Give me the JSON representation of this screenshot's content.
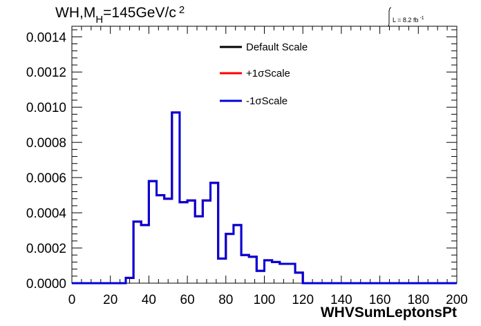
{
  "chart_data": {
    "type": "line",
    "title_prefix": "WH,M",
    "title_sub": "H",
    "title_suffix": "=145GeV/c",
    "title_sup": "2",
    "lumi_label": "L = 8.2 fb",
    "lumi_sup": "-1",
    "xlabel": "WHVSumLeptonsPt",
    "ylabel": "",
    "xlim": [
      0,
      200
    ],
    "ylim": [
      0,
      0.00146
    ],
    "x_ticks": [
      0,
      20,
      40,
      60,
      80,
      100,
      120,
      140,
      160,
      180,
      200
    ],
    "x_tick_labels": [
      "0",
      "20",
      "40",
      "60",
      "80",
      "100",
      "120",
      "140",
      "160",
      "180",
      "200"
    ],
    "y_ticks": [
      0,
      0.0002,
      0.0004,
      0.0006,
      0.0008,
      0.001,
      0.0012,
      0.0014
    ],
    "y_tick_labels": [
      "0.0000",
      "0.0002",
      "0.0004",
      "0.0006",
      "0.0008",
      "0.0010",
      "0.0012",
      "0.0014"
    ],
    "grid": false,
    "legend_position": "top-center",
    "bin_edges": [
      0,
      4,
      8,
      12,
      16,
      20,
      24,
      28,
      32,
      36,
      40,
      44,
      48,
      52,
      56,
      60,
      64,
      68,
      72,
      76,
      80,
      84,
      88,
      92,
      96,
      100,
      104,
      108,
      112,
      116,
      120,
      124,
      128,
      132,
      136,
      140,
      144,
      148,
      152,
      156,
      160,
      164,
      168,
      172,
      176,
      180,
      184,
      188,
      192,
      196,
      200
    ],
    "series": [
      {
        "name": "Default Scale",
        "color": "#000000",
        "values": [
          0,
          0,
          0,
          0,
          0,
          0,
          0,
          3e-05,
          0.00035,
          0.00033,
          0.00058,
          0.0005,
          0.00048,
          0.00097,
          0.00046,
          0.00047,
          0.00038,
          0.00047,
          0.00057,
          0.00014,
          0.00028,
          0.00033,
          0.00016,
          0.00015,
          7e-05,
          0.00013,
          0.00012,
          0.00011,
          0.00011,
          6e-05,
          0,
          0,
          0,
          0,
          0,
          0,
          0,
          0,
          0,
          0,
          0,
          0,
          0,
          0,
          0,
          0,
          0,
          0,
          0,
          0
        ]
      },
      {
        "name": "+1σScale",
        "color": "#ff0000",
        "values": [
          0,
          0,
          0,
          0,
          0,
          0,
          0,
          3e-05,
          0.00035,
          0.00033,
          0.00058,
          0.0005,
          0.00048,
          0.00097,
          0.00046,
          0.00047,
          0.00038,
          0.00047,
          0.00057,
          0.00014,
          0.00028,
          0.00033,
          0.00016,
          0.00015,
          7e-05,
          0.00013,
          0.00012,
          0.00011,
          0.00011,
          6e-05,
          0,
          0,
          0,
          0,
          0,
          0,
          0,
          0,
          0,
          0,
          0,
          0,
          0,
          0,
          0,
          0,
          0,
          0,
          0,
          0
        ]
      },
      {
        "name": "-1σScale",
        "color": "#0000dd",
        "values": [
          0,
          0,
          0,
          0,
          0,
          0,
          0,
          3e-05,
          0.00035,
          0.00033,
          0.00058,
          0.0005,
          0.00048,
          0.00097,
          0.00046,
          0.00047,
          0.00038,
          0.00047,
          0.00057,
          0.00014,
          0.00028,
          0.00033,
          0.00016,
          0.00015,
          7e-05,
          0.00013,
          0.00012,
          0.00011,
          0.00011,
          6e-05,
          0,
          0,
          0,
          0,
          0,
          0,
          0,
          0,
          0,
          0,
          0,
          0,
          0,
          0,
          0,
          0,
          0,
          0,
          0,
          0
        ]
      }
    ]
  }
}
